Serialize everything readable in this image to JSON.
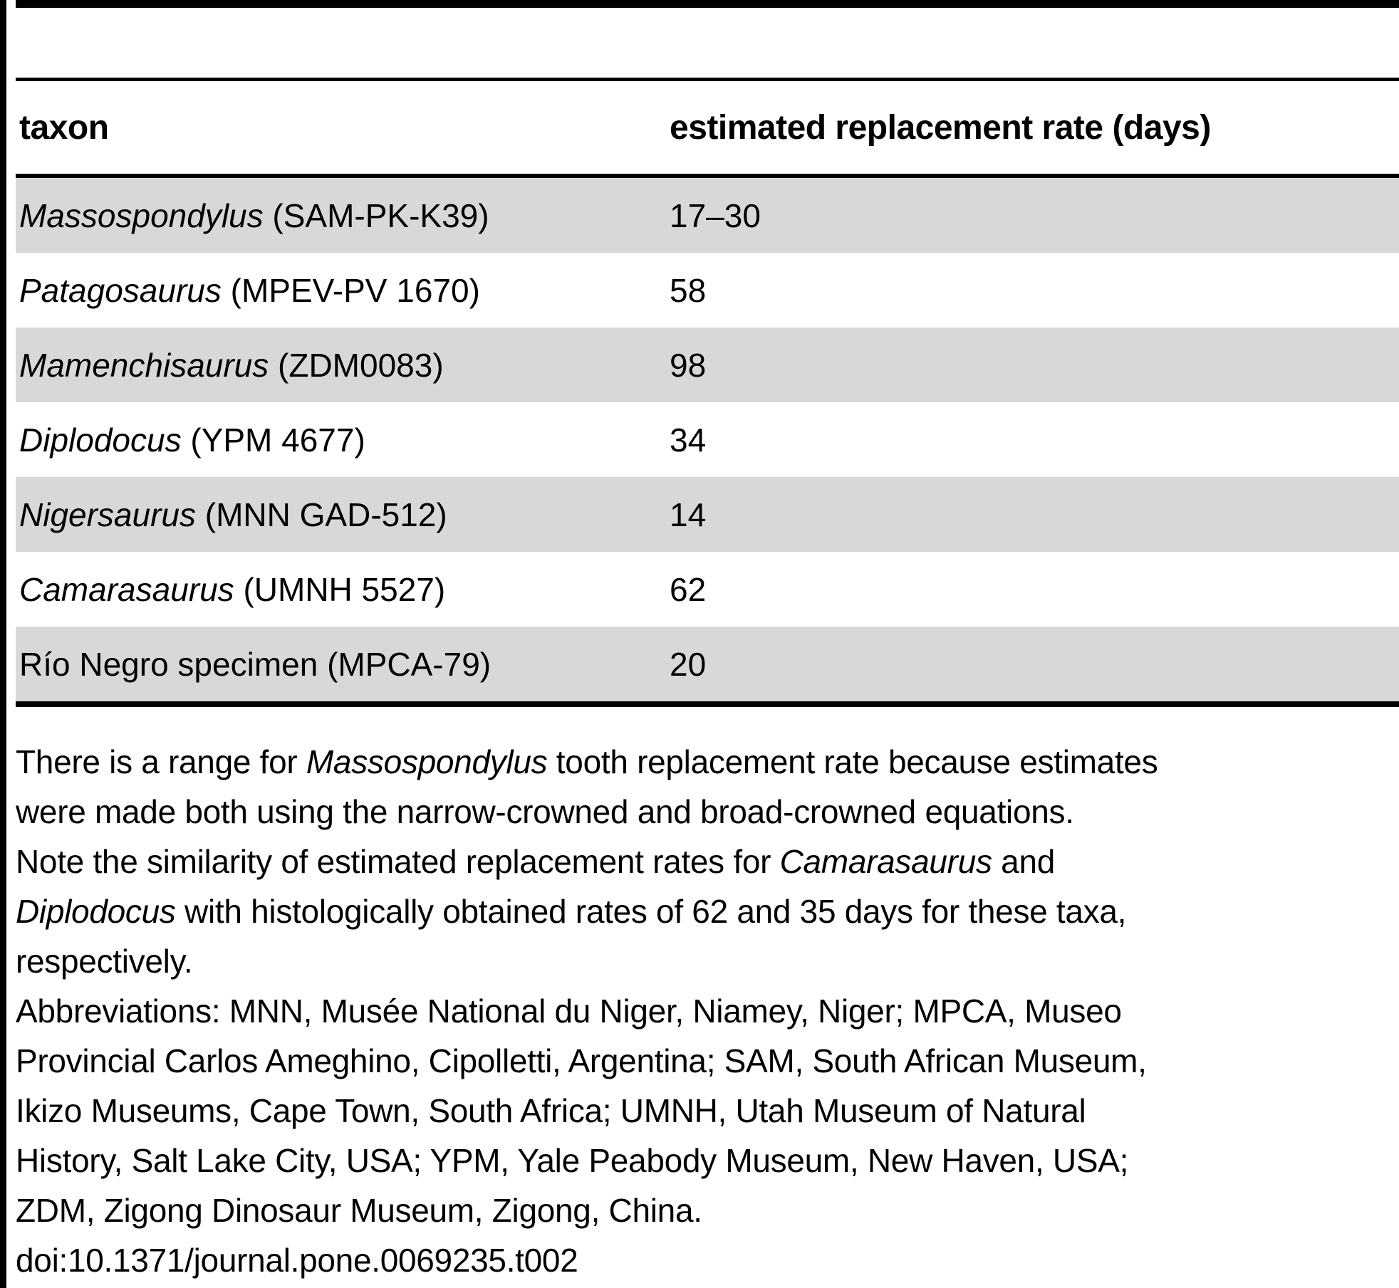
{
  "colors": {
    "row_stripe": "#d8d8d8",
    "rule": "#000000",
    "text": "#000000",
    "background": "#ffffff"
  },
  "table": {
    "columns": [
      {
        "label": "taxon"
      },
      {
        "label": "estimated replacement rate (days)"
      }
    ],
    "rows": [
      {
        "taxon_italic": "Massospondylus",
        "taxon_plain": " (SAM-PK-K39)",
        "rate": "17–30"
      },
      {
        "taxon_italic": "Patagosaurus",
        "taxon_plain": " (MPEV-PV 1670)",
        "rate": "58"
      },
      {
        "taxon_italic": "Mamenchisaurus",
        "taxon_plain": " (ZDM0083)",
        "rate": "98"
      },
      {
        "taxon_italic": "Diplodocus",
        "taxon_plain": " (YPM 4677)",
        "rate": "34"
      },
      {
        "taxon_italic": "Nigersaurus",
        "taxon_plain": " (MNN GAD-512)",
        "rate": "14"
      },
      {
        "taxon_italic": "Camarasaurus",
        "taxon_plain": " (UMNH 5527)",
        "rate": "62"
      },
      {
        "taxon_italic": "",
        "taxon_plain": "Río Negro specimen (MPCA-79)",
        "rate": "20"
      }
    ]
  },
  "notes": {
    "lines": [
      [
        {
          "t": "There is a range for "
        },
        {
          "t": "Massospondylus",
          "i": true
        },
        {
          "t": " tooth replacement rate because estimates"
        }
      ],
      [
        {
          "t": "were made both using the narrow-crowned and broad-crowned equations."
        }
      ],
      [
        {
          "t": "Note the similarity of estimated replacement rates for "
        },
        {
          "t": "Camarasaurus",
          "i": true
        },
        {
          "t": " and"
        }
      ],
      [
        {
          "t": "Diplodocus",
          "i": true
        },
        {
          "t": " with histologically obtained rates of 62 and 35 days for these taxa,"
        }
      ],
      [
        {
          "t": "respectively."
        }
      ],
      [
        {
          "t": "Abbreviations: MNN, Musée National du Niger, Niamey, Niger; MPCA, Museo"
        }
      ],
      [
        {
          "t": "Provincial Carlos Ameghino, Cipolletti, Argentina; SAM, South African Museum,"
        }
      ],
      [
        {
          "t": "Ikizo Museums, Cape Town, South Africa; UMNH, Utah Museum of Natural"
        }
      ],
      [
        {
          "t": "History, Salt Lake City, USA; YPM, Yale Peabody Museum, New Haven, USA;"
        }
      ],
      [
        {
          "t": "ZDM, Zigong Dinosaur Museum, Zigong, China."
        }
      ],
      [
        {
          "t": "doi:10.1371/journal.pone.0069235.t002"
        }
      ]
    ]
  }
}
